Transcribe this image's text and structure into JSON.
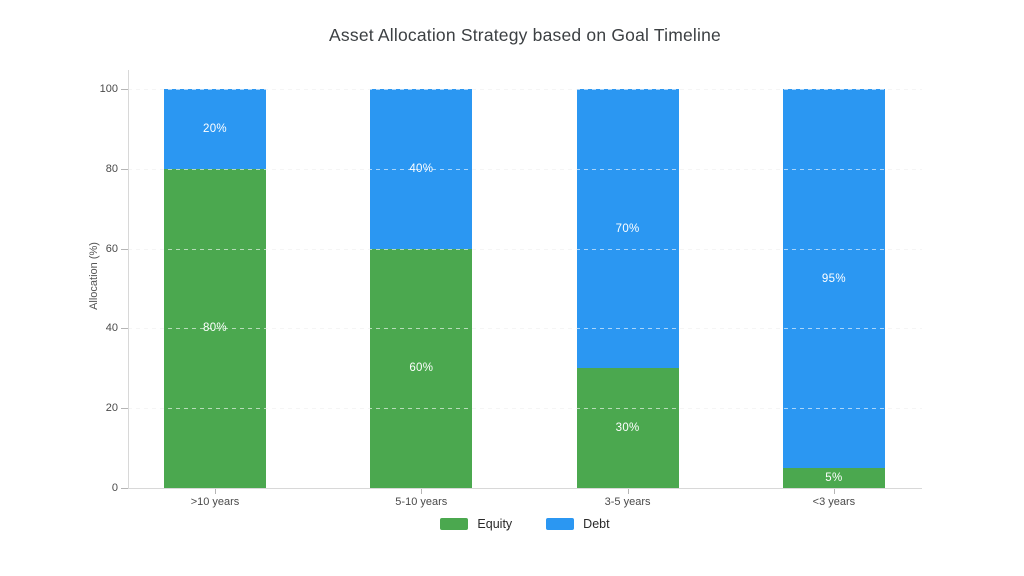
{
  "chart_data": {
    "type": "bar",
    "stacked": true,
    "title": "Asset Allocation Strategy based on Goal Timeline",
    "ylabel": "Allocation (%)",
    "xlabel": "",
    "categories": [
      ">10 years",
      "5-10 years",
      "3-5 years",
      "<3 years"
    ],
    "series": [
      {
        "name": "Equity",
        "color": "#4BA84F",
        "values": [
          80,
          60,
          30,
          5
        ],
        "data_labels": [
          "80%",
          "60%",
          "30%",
          "5%"
        ]
      },
      {
        "name": "Debt",
        "color": "#2B97F2",
        "values": [
          20,
          40,
          70,
          95
        ],
        "data_labels": [
          "20%",
          "40%",
          "70%",
          "95%"
        ]
      }
    ],
    "ylim": [
      0,
      100
    ],
    "yticks": [
      0,
      20,
      40,
      60,
      80,
      100
    ],
    "grid": "dashed-horizontal",
    "legend_position": "bottom",
    "colors": {
      "equity": "#4BA84F",
      "debt": "#2B97F2",
      "gridline": "#e6e6e6",
      "axis": "#d8d8d8",
      "title_text": "#3c4043",
      "tick_text": "#4a4a4a",
      "bar_label_text": "#ffffff",
      "background": "#ffffff"
    }
  }
}
